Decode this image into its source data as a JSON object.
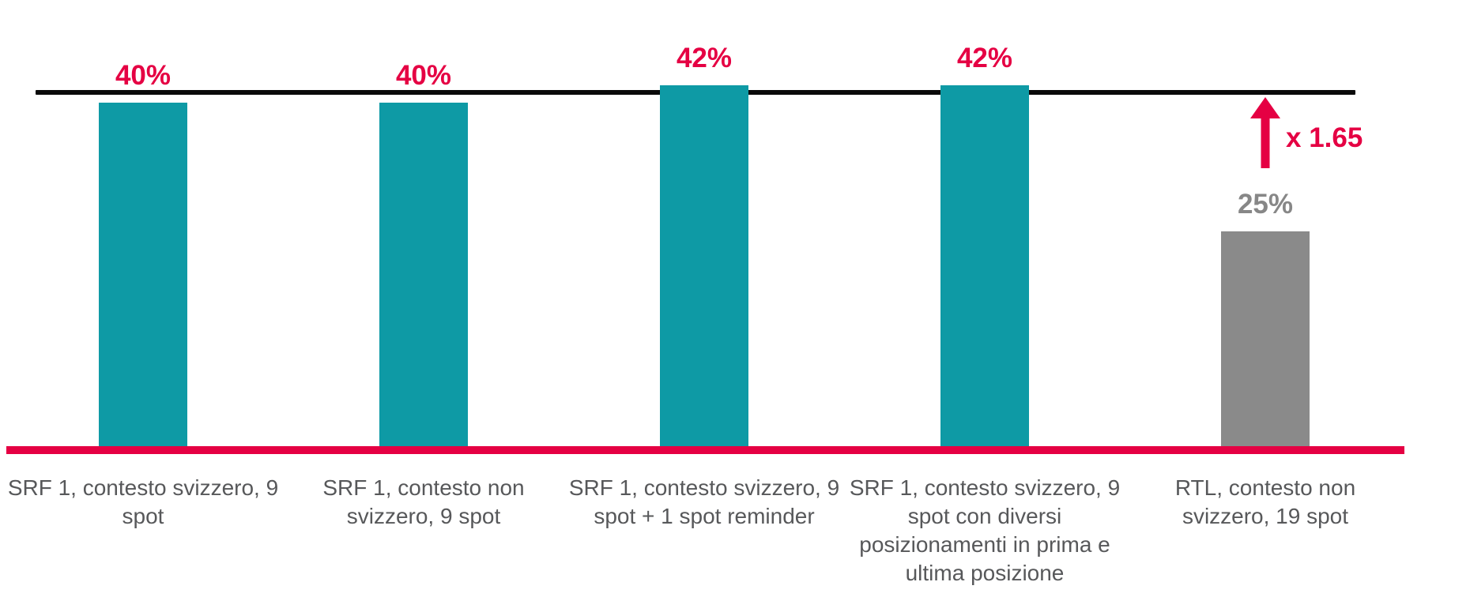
{
  "colors": {
    "teal": "#0E9AA5",
    "crimson": "#E50043",
    "bar_gray": "#8A8A8A",
    "gray_value_label": "#878787",
    "category_text_gray": "#57585A",
    "reference_line_black": "#0A0A0A",
    "background": "#FFFFFF"
  },
  "chart_data": {
    "type": "bar",
    "title": "",
    "xlabel": "",
    "ylabel": "",
    "ylim": [
      0,
      45
    ],
    "grid": false,
    "legend": false,
    "y_axis_visible": false,
    "categories": [
      "SRF 1, contesto svizzero, 9 spot",
      "SRF 1, contesto non svizzero, 9 spot",
      "SRF 1, contesto svizzero, 9 spot + 1 spot reminder",
      "SRF 1, contesto svizzero, 9 spot con diversi posizionamenti in prima e ultima posizione",
      "RTL, contesto non svizzero, 19 spot"
    ],
    "category_lines": [
      [
        "SRF 1, contesto svizzero, 9",
        "spot"
      ],
      [
        "SRF 1, contesto non",
        "svizzero, 9 spot"
      ],
      [
        "SRF 1, contesto svizzero, 9",
        "spot + 1 spot reminder"
      ],
      [
        "SRF 1, contesto svizzero, 9",
        "spot con diversi",
        "posizionamenti in prima e",
        "ultima posizione"
      ],
      [
        "RTL, contesto non",
        "svizzero, 19 spot"
      ]
    ],
    "values": [
      40,
      40,
      42,
      42,
      25
    ],
    "value_labels": [
      "40%",
      "40%",
      "42%",
      "42%",
      "25%"
    ],
    "bar_color_keys": [
      "teal",
      "teal",
      "teal",
      "teal",
      "bar_gray"
    ],
    "value_label_color_keys": [
      "crimson",
      "crimson",
      "crimson",
      "crimson",
      "gray_value_label"
    ],
    "reference_line": {
      "value": 41.2,
      "color_key": "reference_line_black"
    },
    "baseline": {
      "value": 0,
      "color_key": "crimson"
    },
    "annotation": {
      "label": "x 1.65",
      "arrow_direction": "up",
      "at_category_index": 4,
      "color_key": "crimson"
    }
  }
}
